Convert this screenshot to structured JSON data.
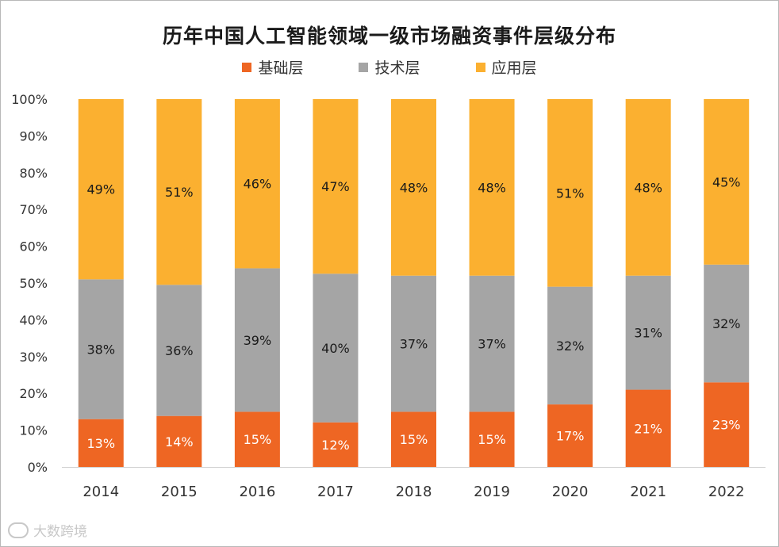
{
  "chart_data": {
    "type": "bar",
    "stacked": true,
    "title": "历年中国人工智能领域一级市场融资事件层级分布",
    "categories": [
      "2014",
      "2015",
      "2016",
      "2017",
      "2018",
      "2019",
      "2020",
      "2021",
      "2022"
    ],
    "series": [
      {
        "name": "基础层",
        "color": "#ee6623",
        "values": [
          13,
          14,
          15,
          12,
          15,
          15,
          17,
          21,
          23
        ],
        "labels": [
          "13%",
          "14%",
          "15%",
          "12%",
          "15%",
          "15%",
          "17%",
          "21%",
          "23%"
        ]
      },
      {
        "name": "技术层",
        "color": "#a5a5a5",
        "values": [
          38,
          36,
          39,
          40,
          37,
          37,
          32,
          31,
          32
        ],
        "labels": [
          "38%",
          "36%",
          "39%",
          "40%",
          "37%",
          "37%",
          "32%",
          "31%",
          "32%"
        ]
      },
      {
        "name": "应用层",
        "color": "#fbb030",
        "values": [
          49,
          51,
          46,
          47,
          48,
          48,
          51,
          48,
          45
        ],
        "labels": [
          "49%",
          "51%",
          "46%",
          "47%",
          "48%",
          "48%",
          "51%",
          "48%",
          "45%"
        ]
      }
    ],
    "y_ticks": [
      "0%",
      "10%",
      "20%",
      "30%",
      "40%",
      "50%",
      "60%",
      "70%",
      "80%",
      "90%",
      "100%"
    ],
    "ylim": [
      0,
      100
    ],
    "xlabel": "",
    "ylabel": "",
    "grid": false,
    "legend_position": "top"
  },
  "footer": {
    "text": "大数跨境"
  }
}
